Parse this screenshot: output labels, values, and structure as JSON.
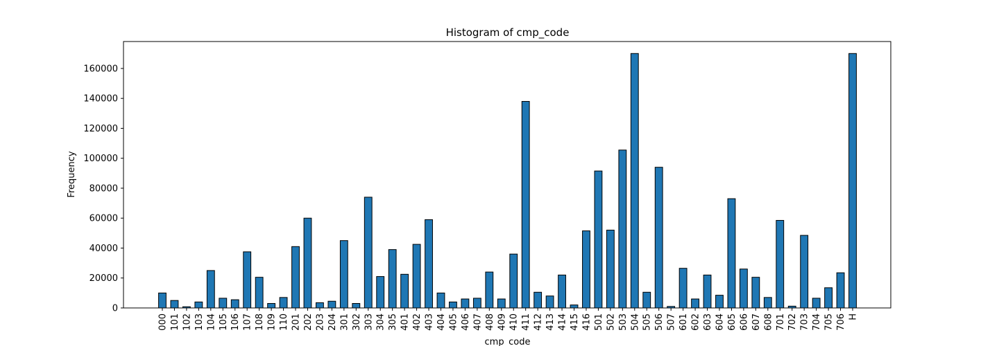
{
  "chart_data": {
    "type": "bar",
    "title": "Histogram of cmp_code",
    "xlabel": "cmp_code",
    "ylabel": "Frequency",
    "ylim": [
      0,
      178000
    ],
    "y_ticks": [
      "0",
      "20000",
      "40000",
      "60000",
      "80000",
      "100000",
      "120000",
      "140000",
      "160000"
    ],
    "grid": false,
    "legend": "none",
    "bar_color": "#1f77b4",
    "edge_color": "#000000",
    "categories": [
      "000",
      "101",
      "102",
      "103",
      "104",
      "105",
      "106",
      "107",
      "108",
      "109",
      "110",
      "201",
      "202",
      "203",
      "204",
      "301",
      "302",
      "303",
      "304",
      "305",
      "401",
      "402",
      "403",
      "404",
      "405",
      "406",
      "407",
      "408",
      "409",
      "410",
      "411",
      "412",
      "413",
      "414",
      "415",
      "416",
      "501",
      "502",
      "503",
      "504",
      "505",
      "506",
      "507",
      "601",
      "602",
      "603",
      "604",
      "605",
      "606",
      "607",
      "608",
      "701",
      "702",
      "703",
      "704",
      "705",
      "706",
      "H"
    ],
    "values": [
      10000,
      5000,
      800,
      4000,
      25000,
      6500,
      5500,
      37500,
      20500,
      3000,
      7000,
      41000,
      60000,
      3500,
      4500,
      45000,
      3000,
      74000,
      21000,
      39000,
      22500,
      42500,
      59000,
      10000,
      4000,
      6000,
      6500,
      24000,
      6000,
      36000,
      138000,
      10500,
      8000,
      22000,
      2000,
      51500,
      91500,
      52000,
      105500,
      170000,
      10500,
      94000,
      1000,
      26500,
      6000,
      22000,
      8500,
      73000,
      26000,
      20500,
      7000,
      58500,
      1200,
      48500,
      6500,
      13500,
      23500,
      170000
    ]
  }
}
